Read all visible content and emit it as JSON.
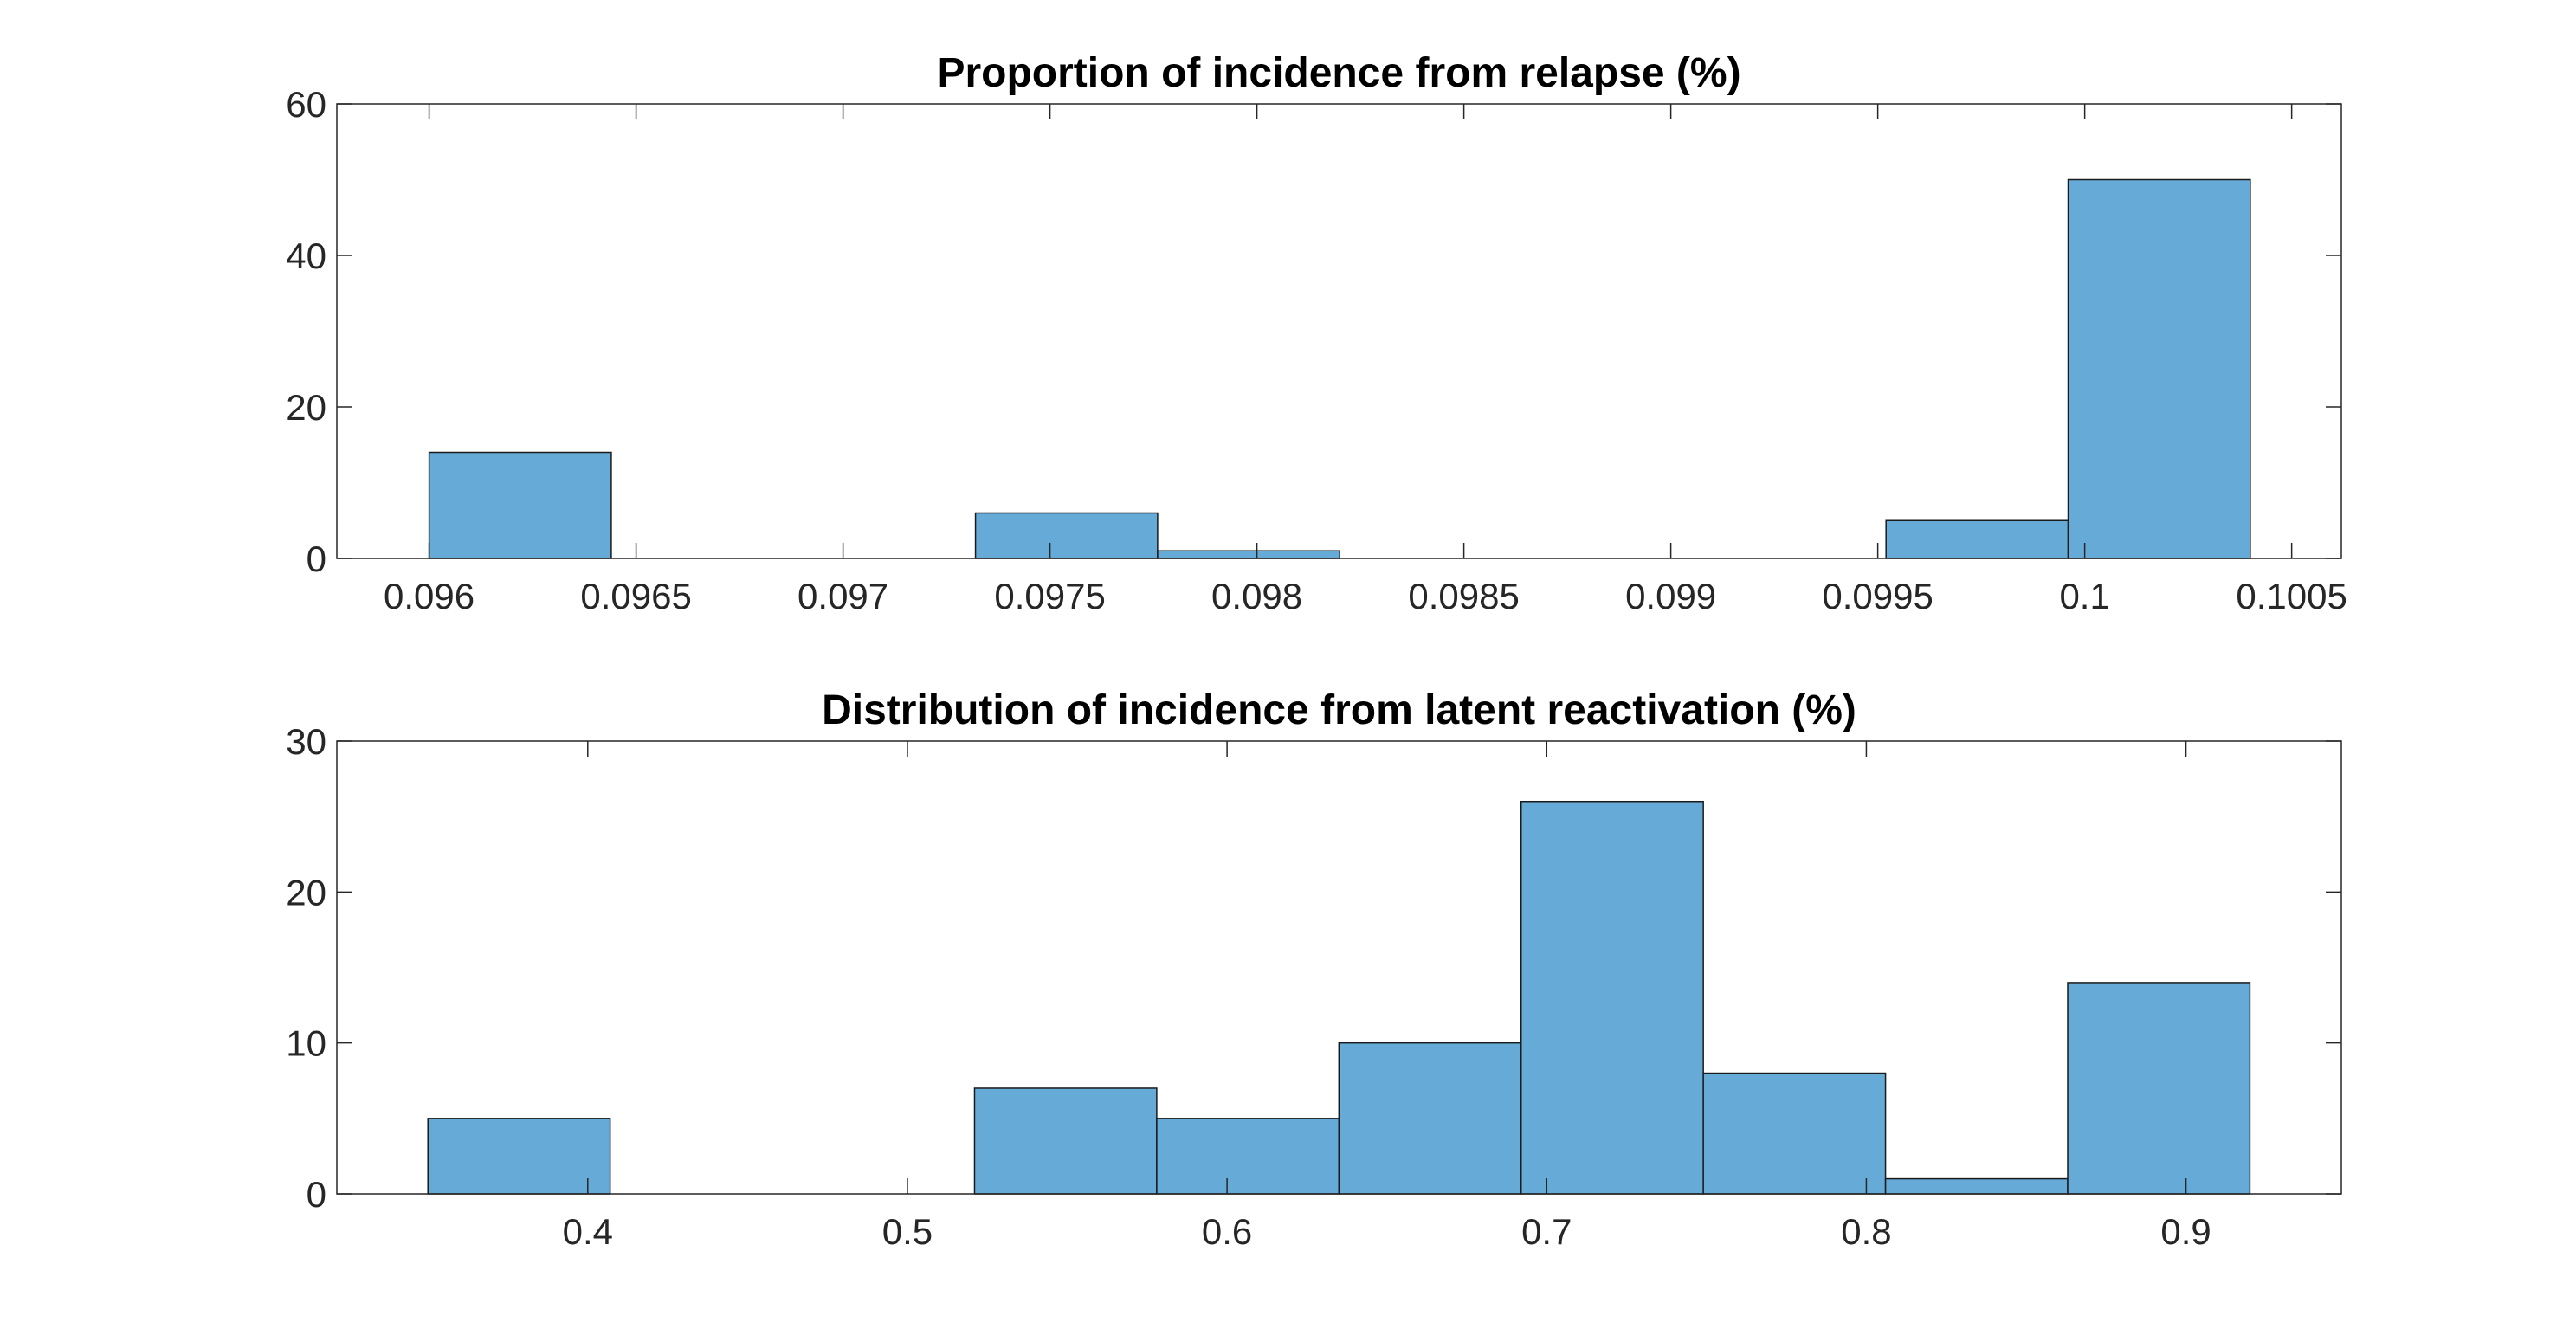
{
  "chart_data": [
    {
      "type": "histogram",
      "title": "Proportion of incidence from relapse (%)",
      "bins": [
        0.096,
        0.09644,
        0.09688,
        0.09732,
        0.09776,
        0.0982,
        0.09864,
        0.09908,
        0.09952,
        0.09996,
        0.1004
      ],
      "values": [
        14,
        0,
        0,
        6,
        1,
        0,
        0,
        0,
        5,
        50
      ],
      "color": "#66aad8",
      "xlim": [
        0.095777,
        0.10062
      ],
      "xticks": [
        0.096,
        0.0965,
        0.097,
        0.0975,
        0.098,
        0.0985,
        0.099,
        0.0995,
        0.1,
        0.1005
      ],
      "ylim": [
        0,
        60
      ],
      "yticks": [
        0,
        20,
        40,
        60
      ]
    },
    {
      "type": "histogram",
      "title": "Distribution of incidence from latent reactivation (%)",
      "bins": [
        0.35,
        0.407,
        0.464,
        0.521,
        0.578,
        0.635,
        0.692,
        0.749,
        0.806,
        0.863,
        0.92
      ],
      "values": [
        5,
        0,
        0,
        7,
        5,
        10,
        26,
        8,
        1,
        14
      ],
      "color": "#66aad8",
      "xlim": [
        0.3215,
        0.9486
      ],
      "xticks": [
        0.4,
        0.5,
        0.6,
        0.7,
        0.8,
        0.9
      ],
      "ylim": [
        0,
        30
      ],
      "yticks": [
        0,
        10,
        20,
        30
      ]
    }
  ]
}
